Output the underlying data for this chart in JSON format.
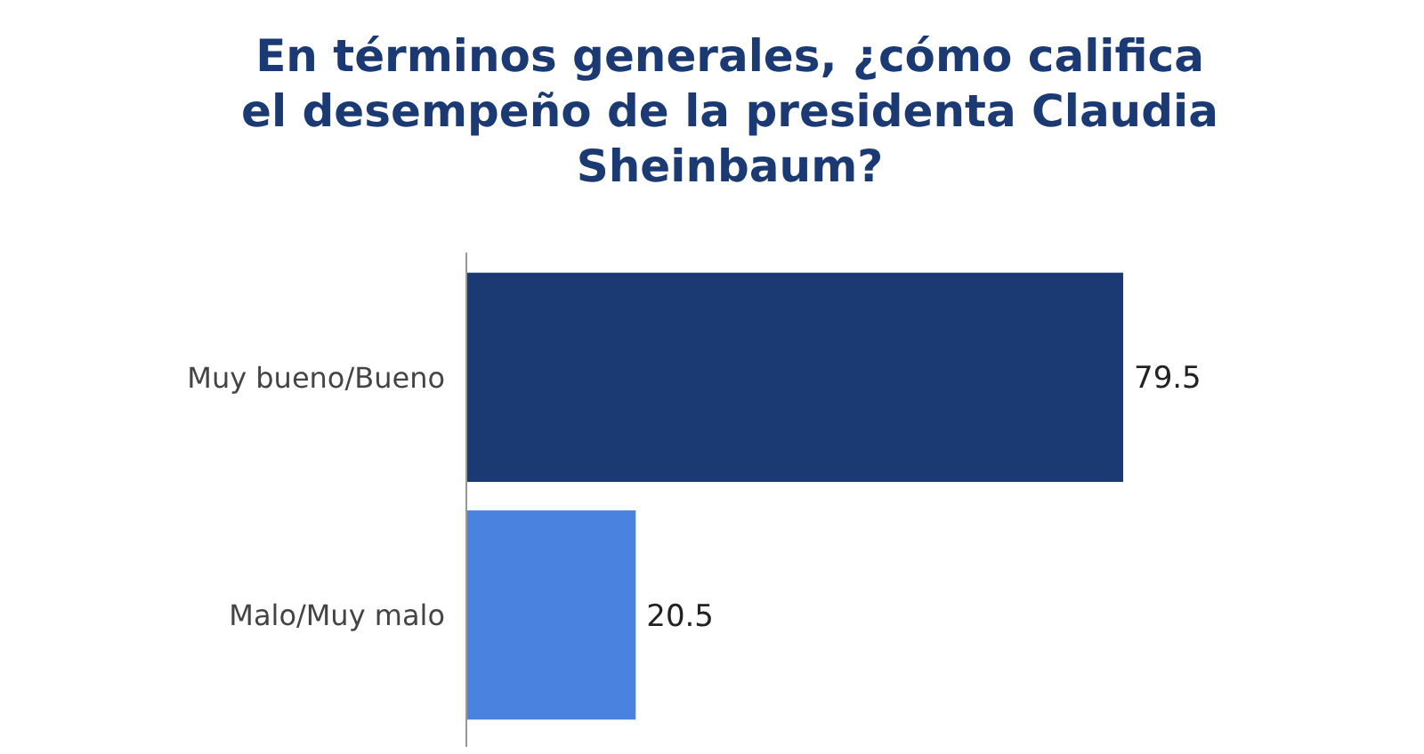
{
  "chart_data": {
    "type": "bar",
    "orientation": "horizontal",
    "title": "En términos generales, ¿cómo califica el desempeño de la presidenta Claudia Sheinbaum?",
    "categories": [
      "Muy bueno/Bueno",
      "Malo/Muy malo"
    ],
    "values": [
      79.5,
      20.5
    ],
    "colors": [
      "#1b3a73",
      "#4a82e0"
    ],
    "data_labels": true
  }
}
